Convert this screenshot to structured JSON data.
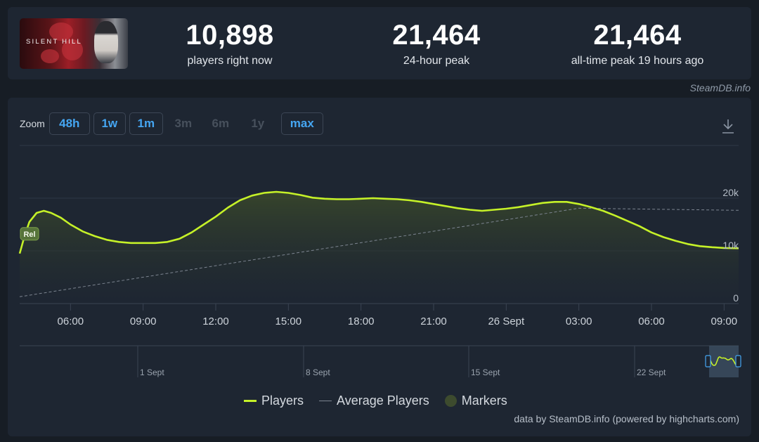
{
  "header": {
    "game_image_text": "SILENT HILL",
    "stats": [
      {
        "value": "10,898",
        "label": "players right now"
      },
      {
        "value": "21,464",
        "label": "24-hour peak"
      },
      {
        "value": "21,464",
        "label": "all-time peak 19 hours ago"
      }
    ],
    "credit": "SteamDB.info"
  },
  "zoom": {
    "label": "Zoom",
    "buttons": [
      {
        "label": "48h",
        "enabled": true
      },
      {
        "label": "1w",
        "enabled": true
      },
      {
        "label": "1m",
        "enabled": true
      },
      {
        "label": "3m",
        "enabled": false
      },
      {
        "label": "6m",
        "enabled": false
      },
      {
        "label": "1y",
        "enabled": false
      },
      {
        "label": "max",
        "enabled": true
      }
    ]
  },
  "legend": {
    "players": "Players",
    "average": "Average Players",
    "markers": "Markers"
  },
  "source_text": "data by SteamDB.info (powered by highcharts.com)",
  "colors": {
    "players_line": "#c5f128",
    "average_line": "#7d8591",
    "link_blue": "#45a6f2"
  },
  "chart_data": {
    "type": "line",
    "x_unit": "hours",
    "x_ticks": [
      {
        "t": 6,
        "label": "06:00"
      },
      {
        "t": 9,
        "label": "09:00"
      },
      {
        "t": 12,
        "label": "12:00"
      },
      {
        "t": 15,
        "label": "15:00"
      },
      {
        "t": 18,
        "label": "18:00"
      },
      {
        "t": 21,
        "label": "21:00"
      },
      {
        "t": 24,
        "label": "26 Sept"
      },
      {
        "t": 27,
        "label": "03:00"
      },
      {
        "t": 30,
        "label": "06:00"
      },
      {
        "t": 33,
        "label": "09:00"
      }
    ],
    "y_ticks": [
      {
        "v": 0,
        "label": "0"
      },
      {
        "v": 10000,
        "label": "10k"
      },
      {
        "v": 20000,
        "label": "20k"
      }
    ],
    "xlim": [
      3.9,
      33.6
    ],
    "ylim": [
      0,
      30000
    ],
    "grid": true,
    "series": [
      {
        "name": "Players",
        "x": [
          3.9,
          4.1,
          4.3,
          4.6,
          4.9,
          5.2,
          5.6,
          6.0,
          6.5,
          7.0,
          7.5,
          8.0,
          8.5,
          9.0,
          9.5,
          10.0,
          10.5,
          11.0,
          11.5,
          12.0,
          12.5,
          13.0,
          13.5,
          14.0,
          14.5,
          15.0,
          15.5,
          16.0,
          16.5,
          17.0,
          17.5,
          18.0,
          18.5,
          19.0,
          19.5,
          20.0,
          20.5,
          21.0,
          21.5,
          22.0,
          22.5,
          23.0,
          23.5,
          24.0,
          24.5,
          25.0,
          25.5,
          26.0,
          26.5,
          27.0,
          27.5,
          28.0,
          28.5,
          29.0,
          29.5,
          30.0,
          30.5,
          31.0,
          31.5,
          32.0,
          32.5,
          33.0,
          33.6
        ],
        "y": [
          9500,
          12800,
          15500,
          17200,
          17600,
          17200,
          16300,
          15000,
          13700,
          12800,
          12100,
          11700,
          11500,
          11500,
          11500,
          11700,
          12300,
          13500,
          15000,
          16500,
          18200,
          19600,
          20500,
          21000,
          21200,
          21000,
          20600,
          20100,
          19900,
          19800,
          19800,
          19900,
          20000,
          19900,
          19800,
          19600,
          19300,
          18900,
          18500,
          18100,
          17800,
          17600,
          17800,
          18000,
          18300,
          18700,
          19100,
          19300,
          19300,
          18900,
          18300,
          17600,
          16700,
          15700,
          14700,
          13500,
          12600,
          11900,
          11300,
          10900,
          10700,
          10550,
          10500
        ]
      },
      {
        "name": "Average Players",
        "x": [
          3.9,
          27.0,
          33.6
        ],
        "y": [
          1300,
          18100,
          17700
        ]
      }
    ],
    "markers": [
      {
        "label": "Rel",
        "x": 4.3
      }
    ],
    "navigator": {
      "labels": [
        "1 Sept",
        "8 Sept",
        "15 Sept",
        "22 Sept"
      ]
    }
  }
}
